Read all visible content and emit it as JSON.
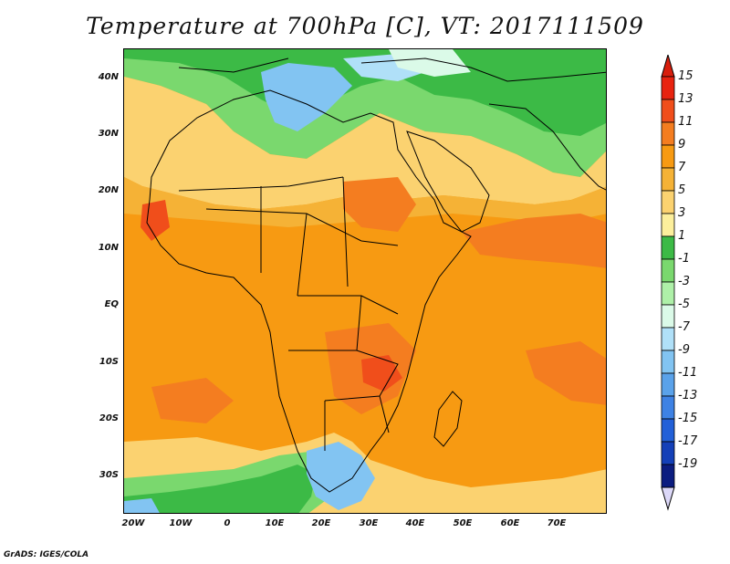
{
  "title": "Temperature at 700hPa [C], VT: 2017111509",
  "credit": "GrADS: IGES/COLA",
  "lat_labels": [
    "40N",
    "30N",
    "20N",
    "10N",
    "EQ",
    "10S",
    "20S",
    "30S"
  ],
  "lon_labels": [
    "20W",
    "10W",
    "0",
    "10E",
    "20E",
    "30E",
    "40E",
    "50E",
    "60E",
    "70E"
  ],
  "colorbar": {
    "labels": [
      "15",
      "13",
      "11",
      "9",
      "7",
      "5",
      "3",
      "1",
      "-1",
      "-3",
      "-5",
      "-7",
      "-9",
      "-11",
      "-13",
      "-15",
      "-17",
      "-19"
    ],
    "colors": [
      "#e8230f",
      "#f04e1b",
      "#f47d20",
      "#f79a12",
      "#f5b236",
      "#fbd270",
      "#fcef9c",
      "#3cba46",
      "#7ad86e",
      "#aef0a8",
      "#dbfae8",
      "#b0e0f8",
      "#82c4f2",
      "#5aa2ea",
      "#3e82e4",
      "#2260d8",
      "#1440b8",
      "#0c1d80"
    ],
    "top_arrow_color": "#d81e0c",
    "bottom_arrow_color": "#dcd8f8"
  }
}
